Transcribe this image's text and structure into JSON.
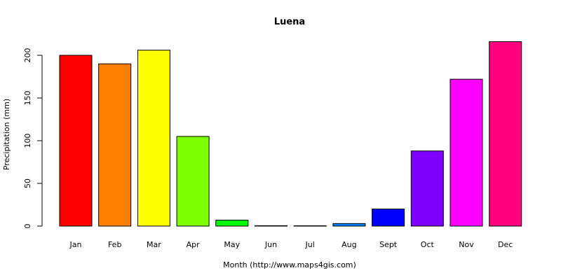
{
  "chart_data": {
    "type": "bar",
    "title": "Luena",
    "xlabel": "Month (http://www.maps4gis.com)",
    "ylabel": "Precipitation (mm)",
    "categories": [
      "Jan",
      "Feb",
      "Mar",
      "Apr",
      "May",
      "Jun",
      "Jul",
      "Aug",
      "Sept",
      "Oct",
      "Nov",
      "Dec"
    ],
    "values": [
      200,
      190,
      206,
      105,
      7,
      0.5,
      0.4,
      3,
      20,
      88,
      172,
      216
    ],
    "colors": [
      "#ff0000",
      "#ff8000",
      "#ffff00",
      "#80ff00",
      "#00ff00",
      "#00ff80",
      "#00ffff",
      "#0080ff",
      "#0000ff",
      "#8000ff",
      "#ff00ff",
      "#ff0080"
    ],
    "yticks": [
      0,
      50,
      100,
      150,
      200
    ],
    "ylim": [
      0,
      220
    ],
    "grid": false,
    "legend": "none"
  }
}
